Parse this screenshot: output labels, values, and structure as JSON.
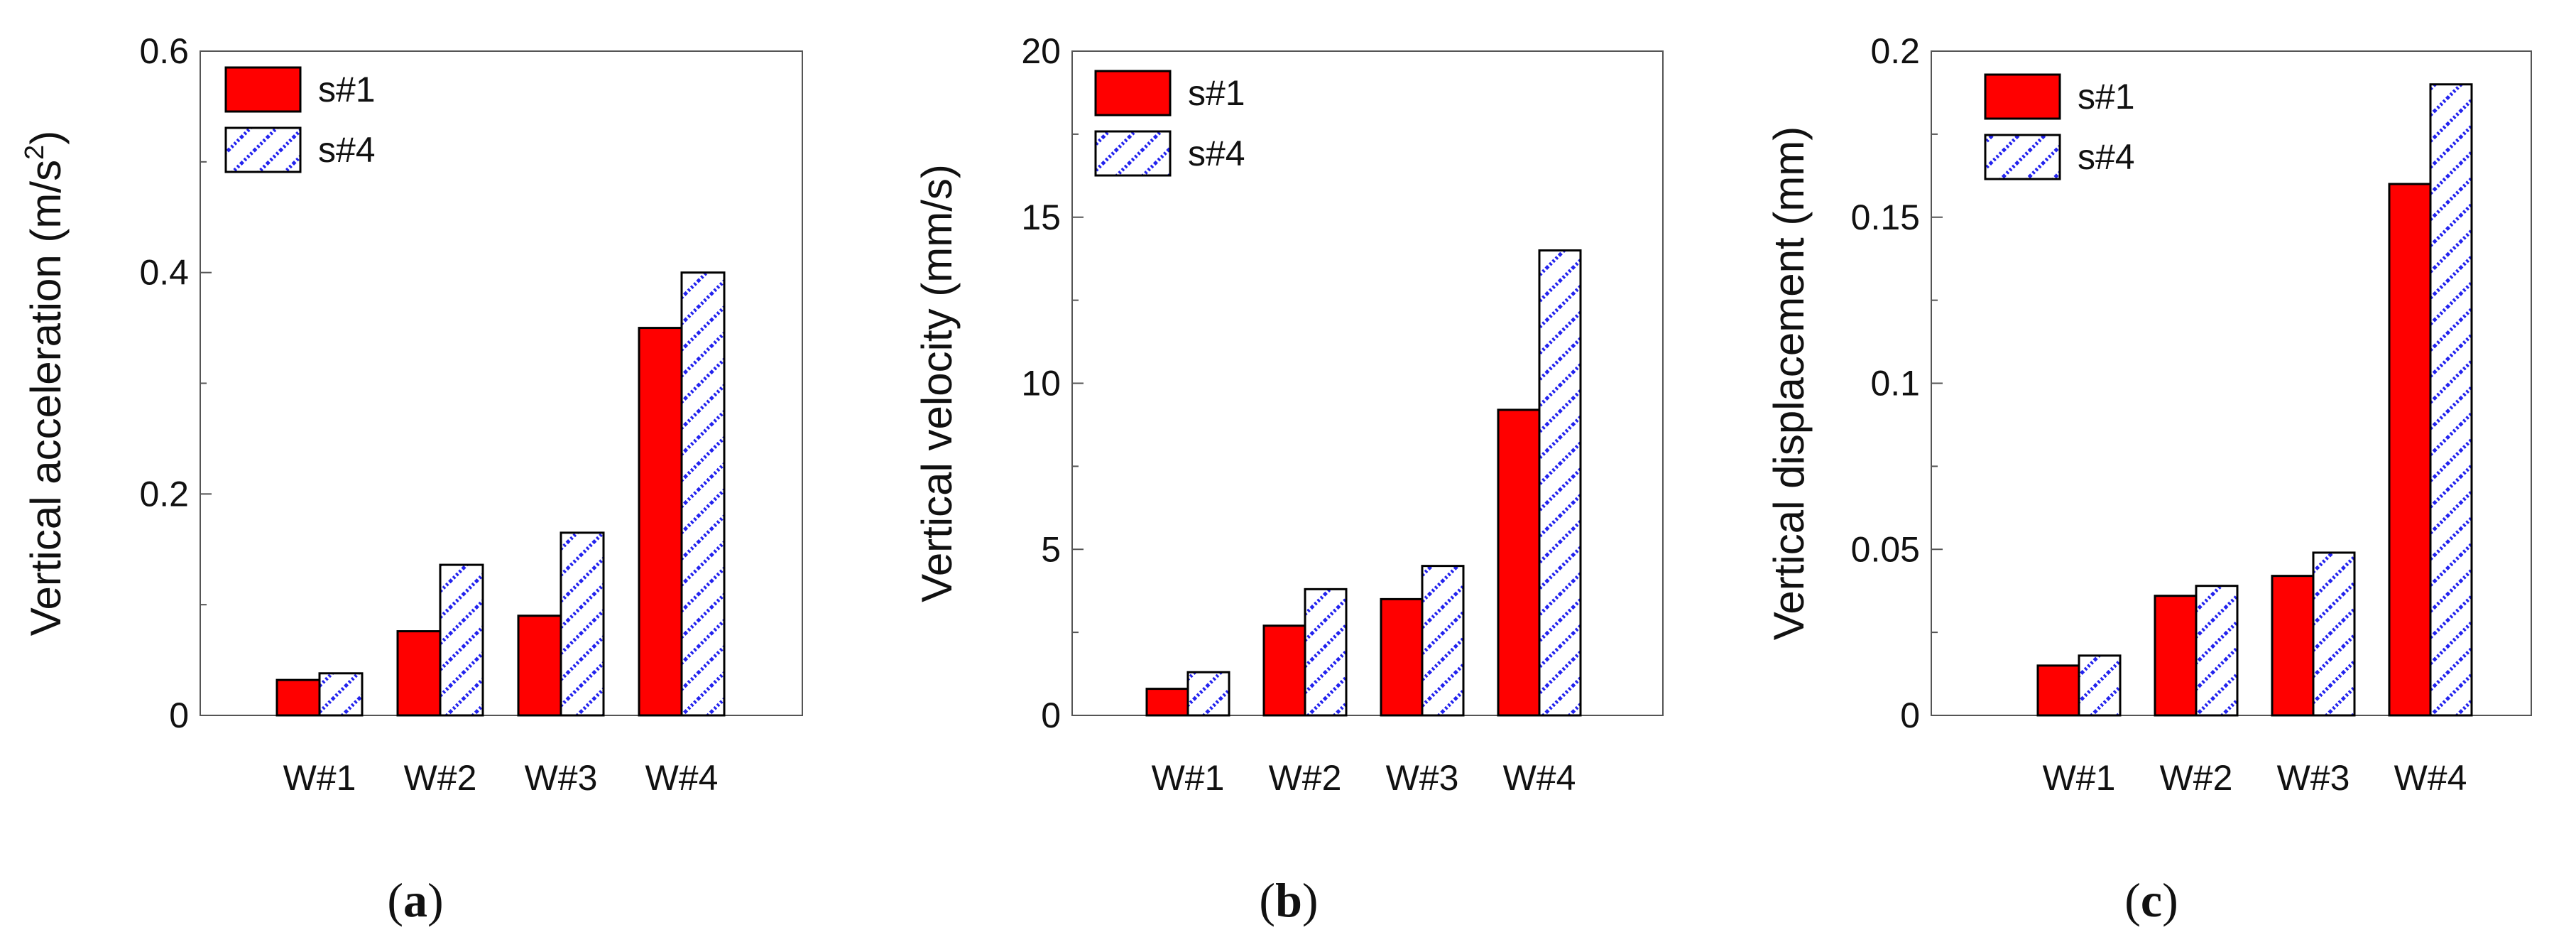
{
  "colors": {
    "s1_fill": "#ff0000",
    "s4_fill": "#ffffff",
    "s4_hatch": "#2222ee",
    "axis": "#555555",
    "edge": "#000000"
  },
  "chart_data": [
    {
      "type": "bar",
      "caption": "a",
      "categories": [
        "W#1",
        "W#2",
        "W#3",
        "W#4"
      ],
      "series": [
        {
          "name": "s#1",
          "values": [
            0.032,
            0.076,
            0.09,
            0.35
          ]
        },
        {
          "name": "s#4",
          "values": [
            0.038,
            0.136,
            0.165,
            0.4
          ]
        }
      ],
      "ylabel": "Vertical acceleration  (m/s",
      "ylabel_sup": "2",
      "ylabel_suffix": ")",
      "ylim": [
        0,
        0.6
      ],
      "yticks": [
        0,
        0.2,
        0.4,
        0.6
      ],
      "ytick_labels": [
        "0",
        "0.2",
        "0.4",
        "0.6"
      ],
      "legend_position": "top-left",
      "grid": false
    },
    {
      "type": "bar",
      "caption": "b",
      "categories": [
        "W#1",
        "W#2",
        "W#3",
        "W#4"
      ],
      "series": [
        {
          "name": "s#1",
          "values": [
            0.8,
            2.7,
            3.5,
            9.2
          ]
        },
        {
          "name": "s#4",
          "values": [
            1.3,
            3.8,
            4.5,
            14.0
          ]
        }
      ],
      "ylabel": "Vertical velocity  (mm/s)",
      "ylabel_sup": "",
      "ylabel_suffix": "",
      "ylim": [
        0,
        20
      ],
      "yticks": [
        0,
        5,
        10,
        15,
        20
      ],
      "ytick_labels": [
        "0",
        "5",
        "10",
        "15",
        "20"
      ],
      "legend_position": "top-left",
      "grid": false
    },
    {
      "type": "bar",
      "caption": "c",
      "categories": [
        "W#1",
        "W#2",
        "W#3",
        "W#4"
      ],
      "series": [
        {
          "name": "s#1",
          "values": [
            0.015,
            0.036,
            0.042,
            0.16
          ]
        },
        {
          "name": "s#4",
          "values": [
            0.018,
            0.039,
            0.049,
            0.19
          ]
        }
      ],
      "ylabel": "Vertical displacement  (mm)",
      "ylabel_sup": "",
      "ylabel_suffix": "",
      "ylim": [
        0,
        0.2
      ],
      "yticks": [
        0,
        0.05,
        0.1,
        0.15,
        0.2
      ],
      "ytick_labels": [
        "0",
        "0.05",
        "0.1",
        "0.15",
        "0.2"
      ],
      "legend_position": "top-left",
      "grid": false
    }
  ]
}
